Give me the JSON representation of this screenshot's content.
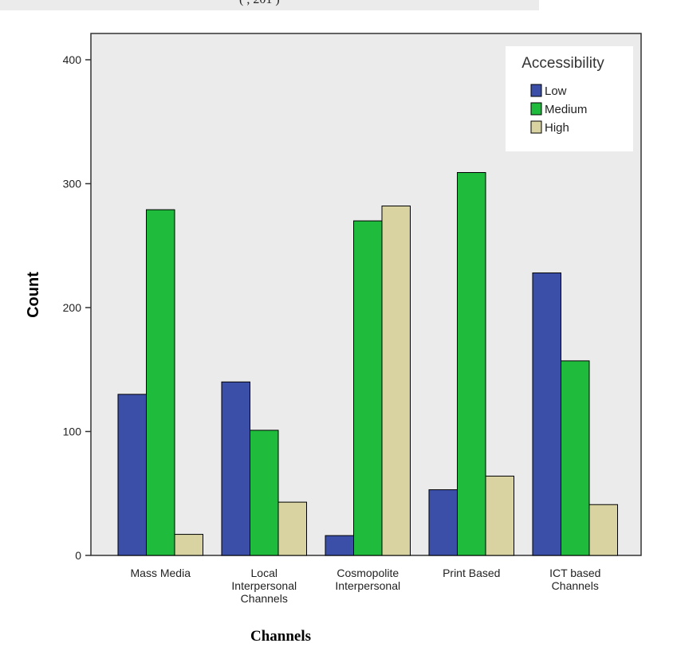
{
  "header_fragment": "(                         , 201 )",
  "chart_data": {
    "type": "bar",
    "title": "",
    "xlabel": "Channels",
    "ylabel": "Count",
    "ylim": [
      0,
      400
    ],
    "yticks": [
      0,
      100,
      200,
      300,
      400
    ],
    "grid": false,
    "legend": {
      "title": "Accessibility",
      "placement": "top-right"
    },
    "categories": [
      [
        "Mass Media"
      ],
      [
        "Local",
        "Interpersonal",
        "Channels"
      ],
      [
        "Cosmopolite",
        "Interpersonal"
      ],
      [
        "Print Based"
      ],
      [
        "ICT based",
        "Channels"
      ]
    ],
    "series": [
      {
        "name": "Low",
        "color": "#3b4fa8",
        "values": [
          130,
          140,
          16,
          53,
          228
        ]
      },
      {
        "name": "Medium",
        "color": "#1fbb3c",
        "values": [
          279,
          101,
          270,
          309,
          157
        ]
      },
      {
        "name": "High",
        "color": "#d8d3a0",
        "values": [
          17,
          43,
          282,
          64,
          41
        ]
      }
    ],
    "colors": {
      "plot_background": "#ebebeb",
      "bar_outline": "#000000"
    }
  }
}
